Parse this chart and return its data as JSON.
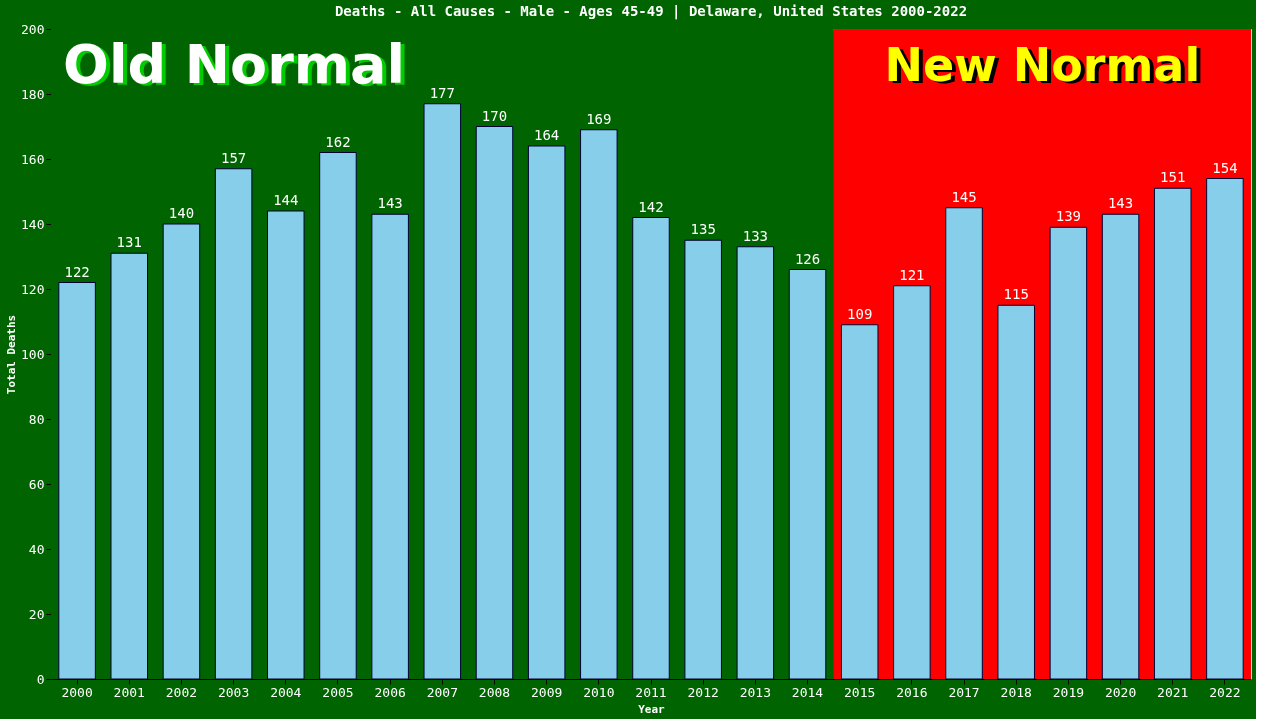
{
  "chart_data": {
    "type": "bar",
    "title": "Deaths - All Causes - Male - Ages 45-49 | Delaware, United States 2000-2022",
    "xlabel": "Year",
    "ylabel": "Total Deaths",
    "categories": [
      "2000",
      "2001",
      "2002",
      "2003",
      "2004",
      "2005",
      "2006",
      "2007",
      "2008",
      "2009",
      "2010",
      "2011",
      "2012",
      "2013",
      "2014",
      "2015",
      "2016",
      "2017",
      "2018",
      "2019",
      "2020",
      "2021",
      "2022"
    ],
    "values": [
      122,
      131,
      140,
      157,
      144,
      162,
      143,
      177,
      170,
      164,
      169,
      142,
      135,
      133,
      126,
      109,
      121,
      145,
      115,
      139,
      143,
      151,
      154
    ],
    "color": "#87ceeb",
    "ylim": [
      0,
      200
    ],
    "yticks": [
      0,
      20,
      40,
      60,
      80,
      100,
      120,
      140,
      160,
      180,
      200
    ],
    "data_labels": true,
    "grid": false,
    "bands": [
      {
        "axis": "x",
        "from": "2000",
        "to": "2014",
        "label": "Old Normal",
        "color": "#006400"
      },
      {
        "axis": "x",
        "from": "2015",
        "to": "2022",
        "label": "New Normal",
        "color": "#ff0000"
      }
    ]
  }
}
